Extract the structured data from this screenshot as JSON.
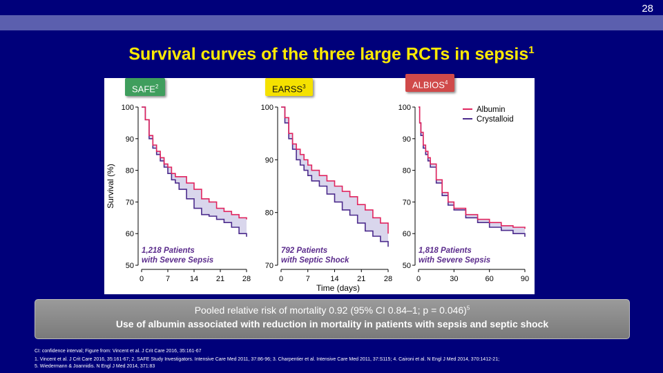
{
  "slide_number": "28",
  "title": "Survival curves of the three large RCTs in sepsis",
  "title_sup": "1",
  "badges": [
    {
      "label": "SAFE",
      "sup": "2"
    },
    {
      "label": "EARSS",
      "sup": "3"
    },
    {
      "label": "ALBIOS",
      "sup": "4"
    }
  ],
  "colors": {
    "albumin": "#e0245e",
    "crystalloid": "#4b2a8c",
    "fill": "#d9d6ec",
    "annotation": "#5b2c8c"
  },
  "chart_data": [
    {
      "type": "line",
      "ylabel": "Survival (%)",
      "ylim": [
        50,
        100
      ],
      "yticks": [
        50,
        60,
        70,
        80,
        90,
        100
      ],
      "xlim": [
        0,
        28
      ],
      "xticks": [
        0,
        7,
        14,
        21,
        28
      ],
      "annotation": [
        "1,218 Patients",
        "with Severe Sepsis"
      ],
      "series": [
        {
          "name": "Albumin",
          "x": [
            0,
            1,
            2,
            3,
            4,
            5,
            6,
            7,
            8,
            9,
            10,
            12,
            14,
            16,
            18,
            20,
            22,
            24,
            26,
            28
          ],
          "values": [
            100,
            96,
            91,
            88,
            86,
            84,
            82,
            81,
            79,
            78,
            78,
            76,
            74,
            71,
            70,
            68,
            67,
            66,
            65,
            64.5
          ]
        },
        {
          "name": "Crystalloid",
          "x": [
            0,
            1,
            2,
            3,
            4,
            5,
            6,
            7,
            8,
            9,
            10,
            12,
            14,
            16,
            18,
            20,
            22,
            24,
            26,
            28
          ],
          "values": [
            100,
            96,
            90,
            87,
            85,
            83,
            81,
            79,
            77,
            76,
            74,
            71,
            68,
            66,
            65.5,
            64.5,
            63.5,
            62,
            60,
            59
          ]
        }
      ]
    },
    {
      "type": "line",
      "ylim": [
        70,
        100
      ],
      "yticks": [
        70,
        80,
        90,
        100
      ],
      "xlim": [
        0,
        28
      ],
      "xticks": [
        0,
        7,
        14,
        21,
        28
      ],
      "xlabel": "Time (days)",
      "annotation": [
        "792 Patients",
        "with Septic Shock"
      ],
      "series": [
        {
          "name": "Albumin",
          "x": [
            0,
            1,
            2,
            3,
            4,
            5,
            6,
            7,
            8,
            10,
            12,
            14,
            16,
            18,
            20,
            22,
            24,
            26,
            28
          ],
          "values": [
            100,
            98,
            95,
            93,
            92,
            91,
            90,
            89,
            88,
            87,
            86,
            85,
            84,
            83,
            81.5,
            80.5,
            79,
            78,
            76
          ]
        },
        {
          "name": "Crystalloid",
          "x": [
            0,
            1,
            2,
            3,
            4,
            5,
            6,
            7,
            8,
            10,
            12,
            14,
            16,
            18,
            20,
            22,
            24,
            26,
            28
          ],
          "values": [
            100,
            97,
            94,
            92,
            90,
            89,
            88,
            87,
            86,
            85,
            83.5,
            82,
            80.5,
            79.5,
            78,
            76.5,
            75.5,
            74.5,
            73.5
          ]
        }
      ]
    },
    {
      "type": "line",
      "ylim": [
        50,
        100
      ],
      "yticks": [
        50,
        60,
        70,
        80,
        90,
        100
      ],
      "xlim": [
        0,
        90
      ],
      "xticks": [
        0,
        30,
        60,
        90
      ],
      "legend": "top-right",
      "annotation": [
        "1,818 Patients",
        "with Severe Sepsis"
      ],
      "series": [
        {
          "name": "Albumin",
          "x": [
            0,
            1,
            2,
            4,
            6,
            8,
            10,
            15,
            20,
            25,
            30,
            40,
            50,
            60,
            70,
            80,
            90
          ],
          "values": [
            100,
            95,
            92,
            88,
            86,
            84,
            82,
            77,
            73,
            70,
            68,
            66,
            64.5,
            63.5,
            62.5,
            62,
            61.5
          ]
        },
        {
          "name": "Crystalloid",
          "x": [
            0,
            1,
            2,
            4,
            6,
            8,
            10,
            15,
            20,
            25,
            30,
            40,
            50,
            60,
            70,
            80,
            90
          ],
          "values": [
            100,
            95,
            91,
            87,
            85,
            83,
            81,
            76,
            72,
            69,
            67.5,
            65,
            63.5,
            62,
            61,
            60,
            59
          ]
        }
      ]
    }
  ],
  "summary": {
    "line1": "Pooled relative risk of mortality 0.92 (95% CI 0.84–1; p = 0.046)",
    "line1_sup": "5",
    "line2": "Use of albumin associated with reduction in mortality in patients with sepsis and septic shock"
  },
  "footnotes": {
    "line1": "CI: confidence interval; Figure from: Vincent et al. J Crit Care 2016, 35:161-67",
    "line2": "1. Vincent et al. J Crit Care 2016, 35:161-67; 2. SAFE Study Investigators. Intensive Care Med 2011, 37:86-96; 3. Charpentier et al. Intensive Care Med 2011, 37:S115; 4. Caironi et al. N Engl J Med 2014, 370:1412-21;",
    "line3": "5. Wiedermann & Joannidis. N Engl J Med 2014, 371:83"
  }
}
